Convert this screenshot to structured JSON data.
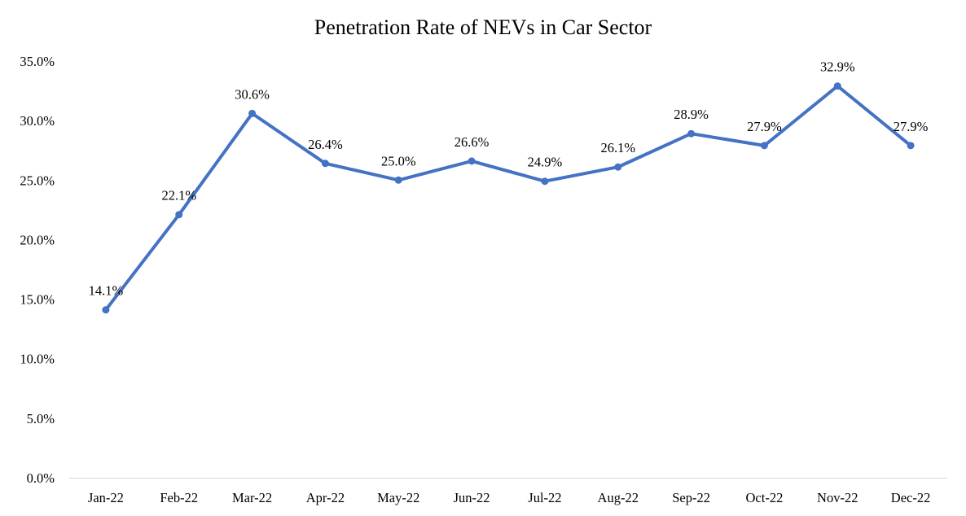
{
  "chart_data": {
    "type": "line",
    "title": "Penetration Rate of NEVs in Car Sector",
    "xlabel": "",
    "ylabel": "",
    "categories": [
      "Jan-22",
      "Feb-22",
      "Mar-22",
      "Apr-22",
      "May-22",
      "Jun-22",
      "Jul-22",
      "Aug-22",
      "Sep-22",
      "Oct-22",
      "Nov-22",
      "Dec-22"
    ],
    "series": [
      {
        "name": "Penetration Rate",
        "values": [
          14.1,
          22.1,
          30.6,
          26.4,
          25.0,
          26.6,
          24.9,
          26.1,
          28.9,
          27.9,
          32.9,
          27.9
        ],
        "labels": [
          "14.1%",
          "22.1%",
          "30.6%",
          "26.4%",
          "25.0%",
          "26.6%",
          "24.9%",
          "26.1%",
          "28.9%",
          "27.9%",
          "32.9%",
          "27.9%"
        ],
        "color": "#4472c4"
      }
    ],
    "ylim": [
      0,
      35
    ],
    "yticks": [
      0,
      5,
      10,
      15,
      20,
      25,
      30,
      35
    ],
    "ytick_labels": [
      "0.0%",
      "5.0%",
      "10.0%",
      "15.0%",
      "20.0%",
      "25.0%",
      "30.0%",
      "35.0%"
    ],
    "grid": false,
    "legend": "none"
  }
}
